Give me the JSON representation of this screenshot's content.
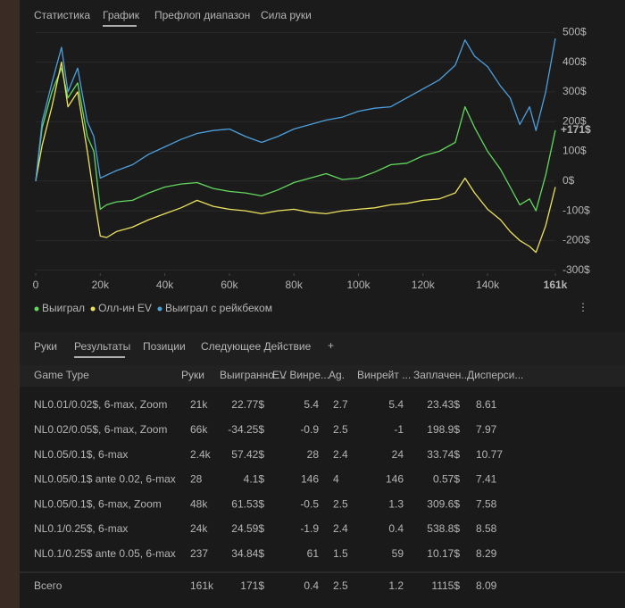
{
  "tabs": [
    "Статистика",
    "График",
    "Префлоп диапазон",
    "Сила руки"
  ],
  "chart_data": {
    "type": "line",
    "x": [
      0,
      2000,
      5000,
      8000,
      10000,
      13000,
      16000,
      18000,
      20000,
      22000,
      25000,
      30000,
      35000,
      40000,
      45000,
      50000,
      55000,
      60000,
      65000,
      70000,
      75000,
      80000,
      85000,
      90000,
      95000,
      100000,
      105000,
      110000,
      115000,
      120000,
      125000,
      130000,
      133000,
      136000,
      140000,
      144000,
      147000,
      150000,
      153000,
      155000,
      158000,
      161000
    ],
    "series": [
      {
        "name": "Выиграл",
        "color": "#62d85e",
        "values": [
          0,
          180,
          300,
          380,
          280,
          330,
          150,
          100,
          -95,
          -80,
          -70,
          -65,
          -40,
          -20,
          -10,
          -5,
          -25,
          -35,
          -40,
          -50,
          -30,
          -5,
          10,
          25,
          5,
          10,
          30,
          55,
          60,
          85,
          100,
          130,
          250,
          180,
          100,
          40,
          -20,
          -80,
          -60,
          -100,
          20,
          171
        ]
      },
      {
        "name": "Олл-ин EV",
        "color": "#ece25e",
        "values": [
          0,
          120,
          250,
          400,
          250,
          300,
          100,
          -50,
          -185,
          -190,
          -170,
          -155,
          -130,
          -110,
          -90,
          -65,
          -85,
          -95,
          -100,
          -110,
          -100,
          -95,
          -105,
          -110,
          -100,
          -95,
          -90,
          -80,
          -75,
          -65,
          -60,
          -40,
          10,
          -40,
          -95,
          -130,
          -170,
          -200,
          -220,
          -240,
          -150,
          -20
        ]
      },
      {
        "name": "Выиграл с рейкбеком",
        "color": "#4d9fdc",
        "values": [
          0,
          200,
          330,
          450,
          300,
          380,
          200,
          150,
          10,
          20,
          35,
          55,
          90,
          115,
          140,
          160,
          170,
          175,
          150,
          130,
          150,
          175,
          190,
          205,
          215,
          235,
          245,
          250,
          280,
          310,
          340,
          390,
          475,
          420,
          385,
          320,
          280,
          190,
          250,
          170,
          300,
          480
        ]
      }
    ],
    "xlim": [
      0,
      161000
    ],
    "xticks": [
      {
        "value": 0,
        "label": "0"
      },
      {
        "value": 20000,
        "label": "20k"
      },
      {
        "value": 40000,
        "label": "40k"
      },
      {
        "value": 60000,
        "label": "60k"
      },
      {
        "value": 80000,
        "label": "80k"
      },
      {
        "value": 100000,
        "label": "100k"
      },
      {
        "value": 120000,
        "label": "120k"
      },
      {
        "value": 140000,
        "label": "140k"
      },
      {
        "value": 161000,
        "label": "161k"
      }
    ],
    "ylim": [
      -310,
      510
    ],
    "yticks": [
      {
        "value": 500,
        "label": "500$"
      },
      {
        "value": 400,
        "label": "400$"
      },
      {
        "value": 300,
        "label": "300$"
      },
      {
        "value": 200,
        "label": "200$"
      },
      {
        "value": 100,
        "label": "100$"
      },
      {
        "value": 0,
        "label": "0$"
      },
      {
        "value": -100,
        "label": "-100$"
      },
      {
        "value": -200,
        "label": "-200$"
      },
      {
        "value": -300,
        "label": "-300$"
      }
    ],
    "grid": true,
    "annotation": "+171$"
  },
  "subtabs": [
    "Руки",
    "Результаты",
    "Позиции",
    "Следующее Действие"
  ],
  "table": {
    "header": [
      "Game Type",
      "Руки",
      "Выигранно ...",
      "EV Винре...",
      "Ag.",
      "Винрейт ...",
      "Заплачен...",
      "Дисперси..."
    ],
    "rows": [
      [
        "NL0.01/0.02$, 6-max, Zoom",
        "21k",
        "22.77$",
        "5.4",
        "2.7",
        "5.4",
        "23.43$",
        "8.61"
      ],
      [
        "NL0.02/0.05$, 6-max, Zoom",
        "66k",
        "-34.25$",
        "-0.9",
        "2.5",
        "-1",
        "198.9$",
        "7.97"
      ],
      [
        "NL0.05/0.1$, 6-max",
        "2.4k",
        "57.42$",
        "28",
        "2.4",
        "24",
        "33.74$",
        "10.77"
      ],
      [
        "NL0.05/0.1$ ante 0.02, 6-max",
        "28",
        "4.1$",
        "146",
        "4",
        "146",
        "0.57$",
        "7.41"
      ],
      [
        "NL0.05/0.1$, 6-max, Zoom",
        "48k",
        "61.53$",
        "-0.5",
        "2.5",
        "1.3",
        "309.6$",
        "7.58"
      ],
      [
        "NL0.1/0.25$, 6-max",
        "24k",
        "24.59$",
        "-1.9",
        "2.4",
        "0.4",
        "538.8$",
        "8.58"
      ],
      [
        "NL0.1/0.25$ ante 0.05, 6-max",
        "237",
        "34.84$",
        "61",
        "1.5",
        "59",
        "10.17$",
        "8.29"
      ]
    ],
    "total": [
      "Всего",
      "161k",
      "171$",
      "0.4",
      "2.5",
      "1.2",
      "1115$",
      "8.09"
    ]
  }
}
